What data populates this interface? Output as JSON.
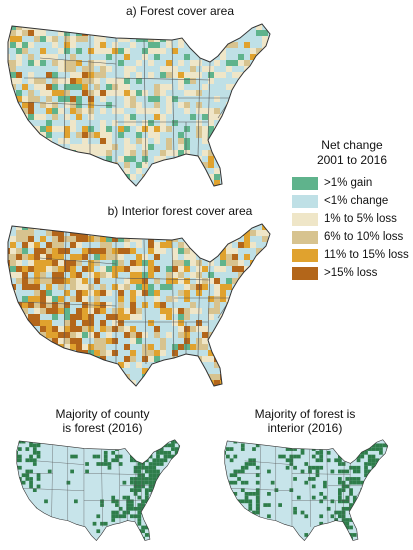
{
  "panels": {
    "a": {
      "title": "a) Forest cover area"
    },
    "b": {
      "title": "b) Interior forest cover area"
    },
    "c": {
      "title_line1": "Majority of county",
      "title_line2": "is forest (2016)"
    },
    "d": {
      "title_line1": "Majority of forest is",
      "title_line2": "interior (2016)"
    }
  },
  "legend": {
    "title_line1": "Net change",
    "title_line2": "2001 to 2016",
    "items": [
      {
        "label": ">1% gain",
        "color": "#5fb38c"
      },
      {
        "label": "<1% change",
        "color": "#bfe0e6"
      },
      {
        "label": "1% to 5% loss",
        "color": "#efe6c8"
      },
      {
        "label": "6% to 10% loss",
        "color": "#d7c38f"
      },
      {
        "label": "11% to 15% loss",
        "color": "#e0a22e"
      },
      {
        "label": ">15% loss",
        "color": "#b3661a"
      }
    ]
  },
  "binary_map_colors": {
    "forest": "#2e7d4a",
    "other": "#c7e4ea"
  }
}
